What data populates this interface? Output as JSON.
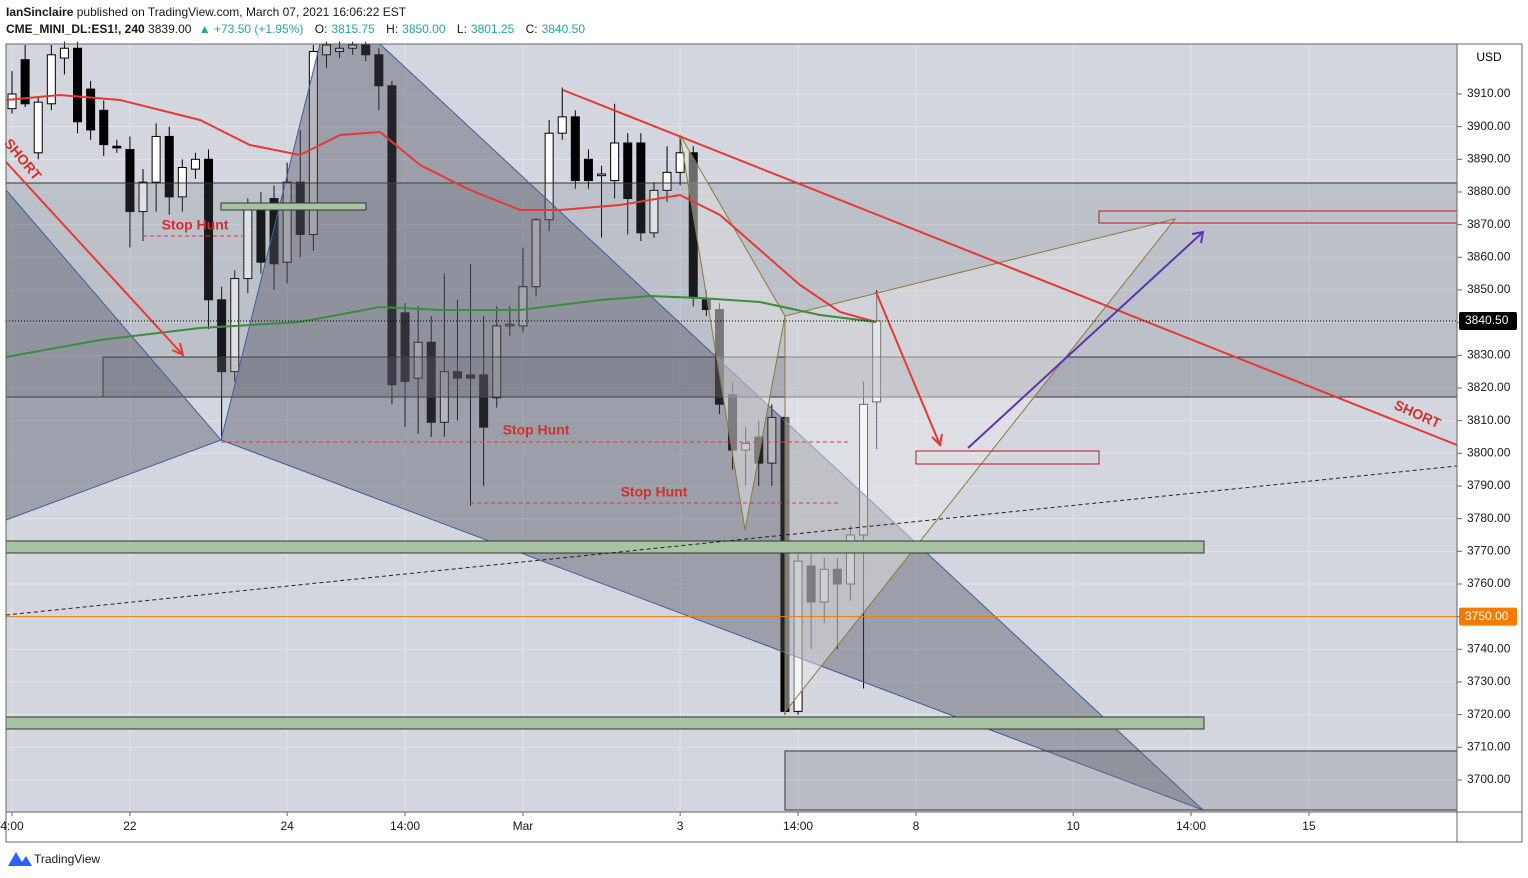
{
  "header": {
    "author": "IanSinclaire",
    "published": "published on TradingView.com, March 07, 2021 16:06:22 EST",
    "symbol": "CME_MINI_DL:ES1!, 240",
    "last": "3839.00",
    "change": "+73.50 (+1.95%)",
    "ohlc": [
      {
        "key": "O:",
        "value": "3815.75"
      },
      {
        "key": "H:",
        "value": "3850.00"
      },
      {
        "key": "L:",
        "value": "3801.25"
      },
      {
        "key": "C:",
        "value": "3840.50"
      }
    ]
  },
  "chart_data": {
    "type": "candlestick",
    "currency": "USD",
    "up_color": "#ffffff",
    "down_color": "#000000",
    "grid": true,
    "x": [
      0,
      1,
      2,
      3,
      4,
      5,
      6,
      7,
      8,
      9,
      10,
      11,
      12,
      13,
      14,
      15,
      16,
      17,
      18,
      19,
      20,
      21,
      22,
      23,
      24,
      25,
      26,
      27,
      28,
      29,
      30,
      31,
      32,
      33,
      34,
      35,
      36,
      37,
      38,
      39,
      40,
      41,
      42,
      43,
      44,
      45,
      46,
      47,
      48,
      49,
      50,
      51,
      52,
      53,
      54,
      55,
      56,
      57,
      58,
      59,
      60,
      61,
      62,
      63,
      64,
      65,
      66
    ],
    "open": [
      3905.5,
      3920.5,
      3892,
      3907,
      3921,
      3924,
      3911.5,
      3905,
      3894,
      3893,
      3874,
      3883,
      3897,
      3878.5,
      3887,
      3890,
      3847,
      3825,
      3853.5,
      3875.5,
      3878,
      3858.5,
      3883,
      3867,
      3922,
      3923,
      3924,
      3925,
      3922,
      3912.5,
      3843,
      3823,
      3834,
      3809.5,
      3825,
      3824,
      3824,
      3817,
      3839,
      3839,
      3851,
      3871.5,
      3898,
      3903,
      3890,
      3885,
      3883.5,
      3895,
      3895,
      3867.5,
      3880.5,
      3886,
      3892,
      3847,
      3844,
      3818,
      3801,
      3805,
      3797,
      3811,
      3721,
      3765.5,
      3754.5,
      3764.5,
      3760,
      3775,
      3815.75
    ],
    "high": [
      3917,
      3925,
      3909,
      3925,
      3926,
      3926,
      3914,
      3908,
      3896,
      3897,
      3887,
      3901,
      3900,
      3890,
      3892,
      3893,
      3851,
      3856,
      3878,
      3880,
      3882,
      3889,
      3899,
      3925,
      3926,
      3926,
      3926,
      3926,
      3924,
      3914,
      3846,
      3845,
      3842,
      3855,
      3847,
      3858,
      3842,
      3845,
      3845,
      3863,
      3872,
      3902,
      3912,
      3905,
      3893,
      3888,
      3907,
      3898,
      3898,
      3883,
      3894,
      3897,
      3894,
      3850,
      3846,
      3822,
      3808,
      3810,
      3815,
      3812,
      3770,
      3770,
      3768,
      3768,
      3778,
      3822,
      3850
    ],
    "low": [
      3904,
      3906,
      3890,
      3905,
      3916,
      3898,
      3896,
      3891,
      3892,
      3863,
      3865,
      3874,
      3873,
      3874,
      3884,
      3838,
      3804,
      3822,
      3849,
      3855,
      3850,
      3852,
      3860,
      3862,
      3918,
      3921,
      3922,
      3920,
      3905,
      3815,
      3808,
      3806,
      3805,
      3805,
      3810,
      3784,
      3790,
      3814,
      3836,
      3837,
      3848,
      3868,
      3896,
      3881,
      3881,
      3866,
      3878,
      3867,
      3865,
      3866,
      3877,
      3882,
      3845,
      3842,
      3812,
      3795,
      3790,
      3790,
      3790,
      3720,
      3720,
      3740,
      3748,
      3740,
      3755,
      3728,
      3801.25
    ],
    "close": [
      3910,
      3907,
      3907.5,
      3922,
      3924,
      3901.5,
      3899,
      3894.5,
      3893.5,
      3874,
      3883,
      3897,
      3878.5,
      3887.5,
      3890,
      3847,
      3825,
      3853.5,
      3875.5,
      3858.5,
      3858,
      3883,
      3867,
      3923,
      3925,
      3924,
      3925,
      3922,
      3912.5,
      3821,
      3822,
      3834,
      3809.5,
      3825,
      3823,
      3823,
      3808,
      3839,
      3839.5,
      3851,
      3871.5,
      3898,
      3903,
      3883.5,
      3883.5,
      3885.5,
      3895,
      3878,
      3867.5,
      3880.5,
      3886,
      3892,
      3847.5,
      3844,
      3815,
      3801,
      3803,
      3797,
      3811,
      3721,
      3767,
      3754.5,
      3764.5,
      3760,
      3775,
      3815,
      3840.5
    ],
    "xlim": [
      -0.46,
      110.3
    ],
    "xticks": [
      {
        "value": 0,
        "label": "4:00"
      },
      {
        "value": 9,
        "label": "22"
      },
      {
        "value": 21,
        "label": "24"
      },
      {
        "value": 30,
        "label": "14:00"
      },
      {
        "value": 39,
        "label": "Mar"
      },
      {
        "value": 51,
        "label": "3"
      },
      {
        "value": 60,
        "label": "14:00"
      },
      {
        "value": 69,
        "label": "8"
      },
      {
        "value": 81,
        "label": "10"
      },
      {
        "value": 90,
        "label": "14:00"
      },
      {
        "value": 99,
        "label": "15"
      }
    ],
    "ylim": [
      3690.2,
      3925.3
    ],
    "yticks": [
      {
        "value": 3700,
        "label": "3700.00"
      },
      {
        "value": 3710,
        "label": "3710.00"
      },
      {
        "value": 3720,
        "label": "3720.00"
      },
      {
        "value": 3730,
        "label": "3730.00"
      },
      {
        "value": 3740,
        "label": "3740.00"
      },
      {
        "value": 3750,
        "label": "3750.00"
      },
      {
        "value": 3760,
        "label": "3760.00"
      },
      {
        "value": 3770,
        "label": "3770.00"
      },
      {
        "value": 3780,
        "label": "3780.00"
      },
      {
        "value": 3790,
        "label": "3790.00"
      },
      {
        "value": 3800,
        "label": "3800.00"
      },
      {
        "value": 3810,
        "label": "3810.00"
      },
      {
        "value": 3820,
        "label": "3820.00"
      },
      {
        "value": 3830,
        "label": "3830.00"
      },
      {
        "value": 3840,
        "label": "3840.00"
      },
      {
        "value": 3850,
        "label": "3850.00"
      },
      {
        "value": 3860,
        "label": "3860.00"
      },
      {
        "value": 3870,
        "label": "3870.00"
      },
      {
        "value": 3880,
        "label": "3880.00"
      },
      {
        "value": 3890,
        "label": "3890.00"
      },
      {
        "value": 3900,
        "label": "3900.00"
      },
      {
        "value": 3910,
        "label": "3910.00"
      }
    ],
    "price_lines": [
      {
        "value": 3840.5,
        "label": "3840.50",
        "color": "#000000"
      },
      {
        "value": 3750,
        "label": "3750.00",
        "color": "#f57c00"
      }
    ],
    "annotations": [
      "SHORT",
      "SHORT",
      "Stop Hunt",
      "Stop Hunt",
      "Stop Hunt"
    ]
  },
  "footer": {
    "brand": "TradingView"
  }
}
